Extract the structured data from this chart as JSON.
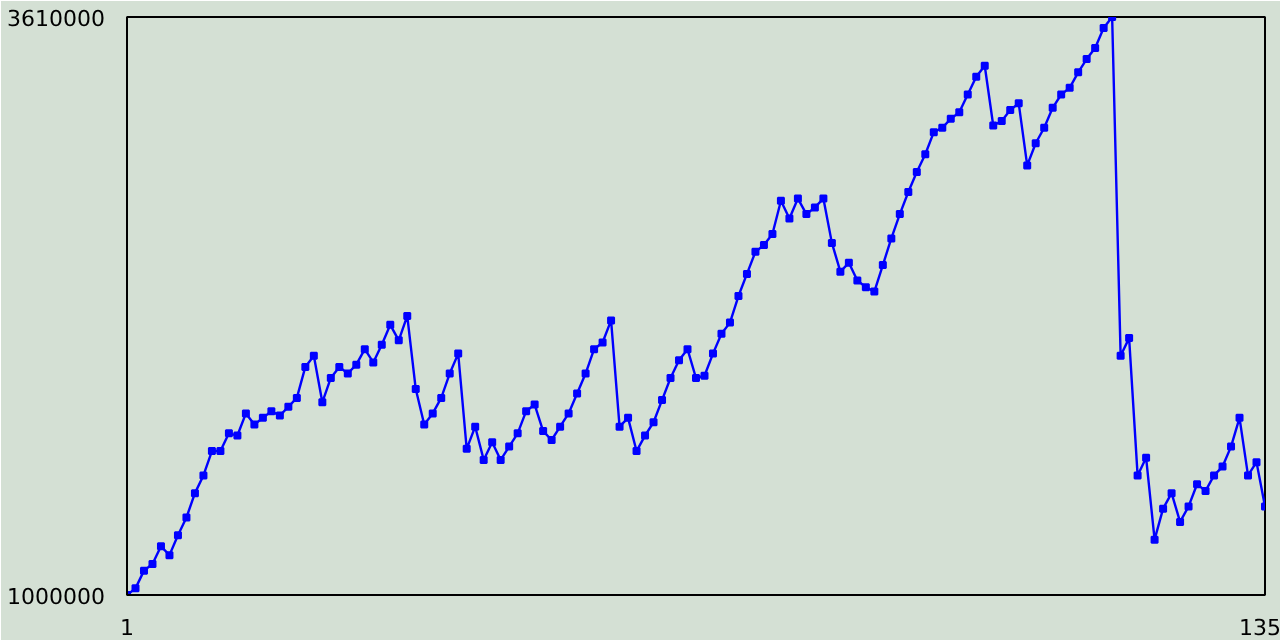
{
  "chart_data": {
    "type": "line",
    "xlim": [
      1,
      135
    ],
    "xticks": [
      1,
      135
    ],
    "ylim": [
      1000000,
      3610000
    ],
    "yticks": [
      1000000,
      3610000
    ],
    "marker": "square",
    "line_style": "solid",
    "x": [
      1,
      2,
      3,
      4,
      5,
      6,
      7,
      8,
      9,
      10,
      11,
      12,
      13,
      14,
      15,
      16,
      17,
      18,
      19,
      20,
      21,
      22,
      23,
      24,
      25,
      26,
      27,
      28,
      29,
      30,
      31,
      32,
      33,
      34,
      35,
      36,
      37,
      38,
      39,
      40,
      41,
      42,
      43,
      44,
      45,
      46,
      47,
      48,
      49,
      50,
      51,
      52,
      53,
      54,
      55,
      56,
      57,
      58,
      59,
      60,
      61,
      62,
      63,
      64,
      65,
      66,
      67,
      68,
      69,
      70,
      71,
      72,
      73,
      74,
      75,
      76,
      77,
      78,
      79,
      80,
      81,
      82,
      83,
      84,
      85,
      86,
      87,
      88,
      89,
      90,
      91,
      92,
      93,
      94,
      95,
      96,
      97,
      98,
      99,
      100,
      101,
      102,
      103,
      104,
      105,
      106,
      107,
      108,
      109,
      110,
      111,
      112,
      113,
      114,
      115,
      116,
      117,
      118,
      119,
      120,
      121,
      122,
      123,
      124,
      125,
      126,
      127,
      128,
      129,
      130,
      131,
      132,
      133,
      134,
      135
    ],
    "series": [
      {
        "color": "#0000ff",
        "values": [
          1000000,
          1030000,
          1110000,
          1140000,
          1220000,
          1180000,
          1270000,
          1350000,
          1460000,
          1540000,
          1650000,
          1650000,
          1730000,
          1720000,
          1820000,
          1770000,
          1800000,
          1830000,
          1810000,
          1850000,
          1890000,
          2030000,
          2080000,
          1870000,
          1980000,
          2030000,
          2000000,
          2040000,
          2110000,
          2050000,
          2130000,
          2220000,
          2150000,
          2260000,
          1930000,
          1770000,
          1820000,
          1890000,
          2000000,
          2090000,
          1660000,
          1760000,
          1610000,
          1690000,
          1610000,
          1670000,
          1730000,
          1830000,
          1860000,
          1740000,
          1700000,
          1760000,
          1820000,
          1910000,
          2000000,
          2110000,
          2140000,
          2240000,
          1760000,
          1800000,
          1650000,
          1720000,
          1780000,
          1880000,
          1980000,
          2060000,
          2110000,
          1980000,
          1990000,
          2090000,
          2180000,
          2230000,
          2350000,
          2450000,
          2550000,
          2580000,
          2630000,
          2780000,
          2700000,
          2790000,
          2720000,
          2750000,
          2790000,
          2590000,
          2460000,
          2500000,
          2420000,
          2390000,
          2370000,
          2490000,
          2610000,
          2720000,
          2820000,
          2910000,
          2990000,
          3090000,
          3110000,
          3150000,
          3180000,
          3260000,
          3340000,
          3390000,
          3120000,
          3140000,
          3190000,
          3220000,
          2940000,
          3040000,
          3110000,
          3200000,
          3260000,
          3290000,
          3360000,
          3420000,
          3470000,
          3560000,
          3610000,
          2080000,
          2160000,
          1540000,
          1620000,
          1250000,
          1390000,
          1460000,
          1330000,
          1400000,
          1500000,
          1470000,
          1540000,
          1580000,
          1670000,
          1800000,
          1540000,
          1600000,
          1400000
        ]
      }
    ]
  }
}
